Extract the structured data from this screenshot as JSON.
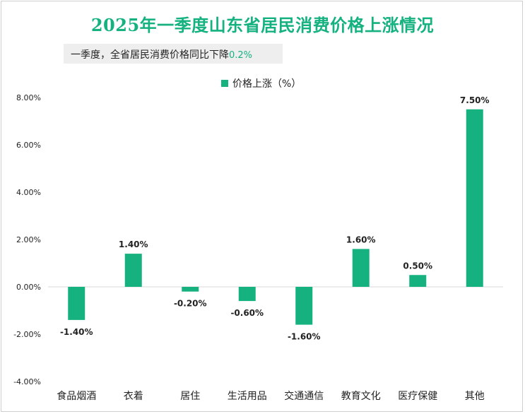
{
  "header": {
    "title": "2025年一季度山东省居民消费价格上涨情况",
    "subtitle_prefix": "一季度，全省居民消费价格同比下降",
    "subtitle_value": "0.2%"
  },
  "colors": {
    "bar": "#15b280",
    "title": "#15b280",
    "axis": "#d9d9d9",
    "text": "#222222"
  },
  "chart_data": {
    "type": "bar",
    "title": "2025年一季度山东省居民消费价格上涨情况",
    "categories": [
      "食品烟酒",
      "衣着",
      "居住",
      "生活用品",
      "交通通信",
      "教育文化",
      "医疗保健",
      "其他"
    ],
    "series": [
      {
        "name": "价格上涨（%）",
        "values": [
          -1.4,
          1.4,
          -0.2,
          -0.6,
          -1.6,
          1.6,
          0.5,
          7.5
        ],
        "labels": [
          "-1.40%",
          "1.40%",
          "-0.20%",
          "-0.60%",
          "-1.60%",
          "1.60%",
          "0.50%",
          "7.50%"
        ]
      }
    ],
    "ylim": [
      -4,
      8
    ],
    "yticks": [
      8,
      6,
      4,
      2,
      0,
      -2,
      -4
    ],
    "ytick_labels": [
      "8.00%",
      "6.00%",
      "4.00%",
      "2.00%",
      "0.00%",
      "-2.00%",
      "-4.00%"
    ],
    "xlabel": "",
    "ylabel": "",
    "legend_position": "top-center",
    "grid": false
  }
}
